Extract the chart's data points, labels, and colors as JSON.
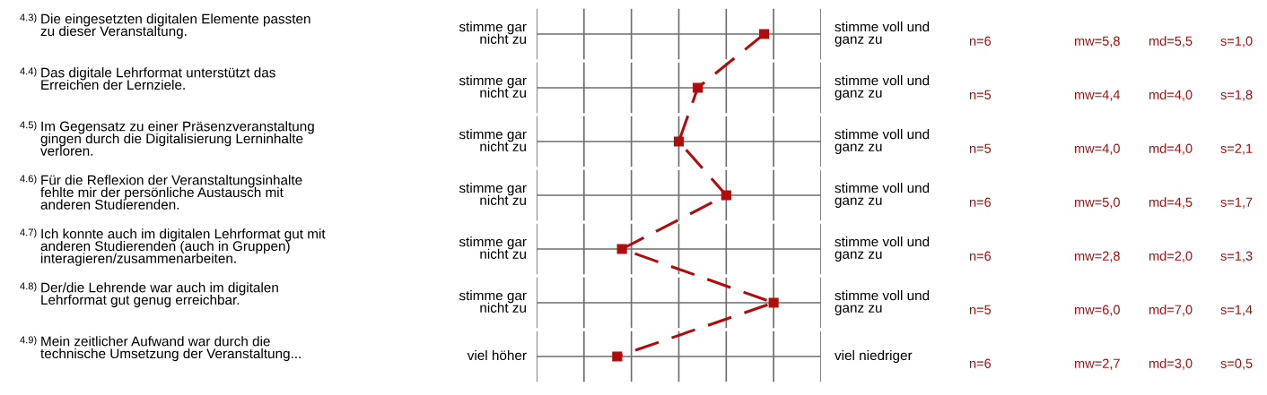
{
  "chart_data": {
    "type": "line",
    "orientation": "horizontal",
    "categories": [
      "Die eingesetzten digitalen Elemente passten\nzu dieser Veranstaltung.",
      "Das digitale Lehrformat unterstützt das\nErreichen der Lernziele.",
      "Im Gegensatz zu einer Präsenzveranstaltung\ngingen durch die Digitalisierung Lerninhalte\nverloren.",
      "Für die Reflexion der Veranstaltungsinhalte\nfehlte mir der persönliche Austausch mit\nanderen Studierenden.",
      "Ich konnte auch im digitalen Lehrformat gut mit\nanderen Studierenden (auch in Gruppen)\ninteragieren/zusammenarbeiten.",
      "Der/die Lehrende war auch im digitalen\nLehrformat gut genug erreichbar.",
      "Mein zeitlicher Aufwand war durch die\ntechnische Umsetzung der Veranstaltung..."
    ],
    "series": [
      {
        "color": "#b00c0c",
        "values": [
          5.8,
          4.4,
          4.0,
          5.0,
          2.8,
          6.0,
          2.7
        ],
        "value_labels": [
          "mw=5,8",
          "mw=4,4",
          "mw=4,0",
          "mw=5,0",
          "mw=2,8",
          "mw=6,0",
          "mw=2,7"
        ]
      }
    ],
    "xlim": [
      1,
      7
    ],
    "marker": "square",
    "line_style": "dashed",
    "annotations": [
      "4.3)",
      "stimme gar\nnicht zu",
      "stimme voll und\nganz zu",
      "n=6",
      "md=5,5",
      "s=1,0",
      "4.4)",
      "stimme gar\nnicht zu",
      "stimme voll und\nganz zu",
      "n=5",
      "md=4,0",
      "s=1,8",
      "4.5)",
      "stimme gar\nnicht zu",
      "stimme voll und\nganz zu",
      "n=5",
      "md=4,0",
      "s=2,1",
      "4.6)",
      "stimme gar\nnicht zu",
      "stimme voll und\nganz zu",
      "n=6",
      "md=4,5",
      "s=1,7",
      "4.7)",
      "stimme gar\nnicht zu",
      "stimme voll und\nganz zu",
      "n=6",
      "md=2,0",
      "s=1,3",
      "4.8)",
      "stimme gar\nnicht zu",
      "stimme voll und\nganz zu",
      "n=5",
      "md=7,0",
      "s=1,4",
      "4.9)",
      "viel höher",
      "viel niedriger",
      "n=6",
      "md=3,0",
      "s=0,5"
    ]
  }
}
